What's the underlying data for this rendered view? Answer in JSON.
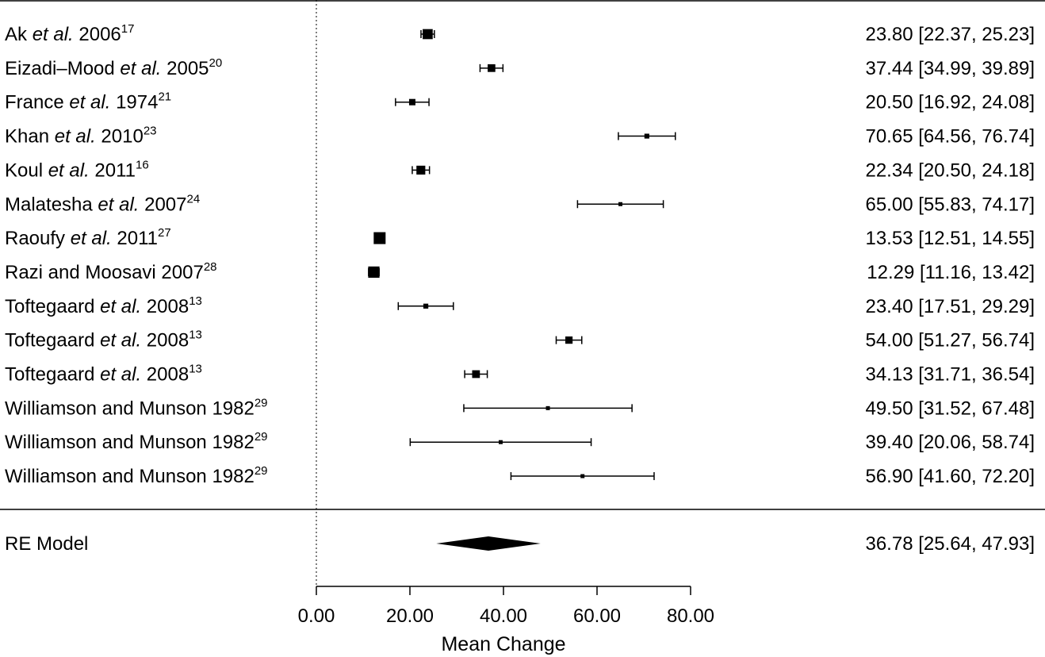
{
  "chart_data": {
    "type": "forest",
    "xlabel": "Mean Change",
    "xlim": [
      0,
      80
    ],
    "xticks": [
      {
        "value": 0,
        "label": "0.00"
      },
      {
        "value": 20,
        "label": "20.00"
      },
      {
        "value": 40,
        "label": "40.00"
      },
      {
        "value": 60,
        "label": "60.00"
      },
      {
        "value": 80,
        "label": "80.00"
      }
    ],
    "reference_line": 0,
    "studies": [
      {
        "parts": [
          {
            "t": "Ak "
          },
          {
            "t": "et al.",
            "i": true
          },
          {
            "t": " 2006"
          }
        ],
        "ref": "17",
        "estimate": 23.8,
        "lower": 22.37,
        "upper": 25.23,
        "ci_text": "23.80 [22.37, 25.23]"
      },
      {
        "parts": [
          {
            "t": "Eizadi–Mood "
          },
          {
            "t": "et al.",
            "i": true
          },
          {
            "t": " 2005"
          }
        ],
        "ref": "20",
        "estimate": 37.44,
        "lower": 34.99,
        "upper": 39.89,
        "ci_text": "37.44 [34.99, 39.89]"
      },
      {
        "parts": [
          {
            "t": "France "
          },
          {
            "t": "et al.",
            "i": true
          },
          {
            "t": " 1974"
          }
        ],
        "ref": "21",
        "estimate": 20.5,
        "lower": 16.92,
        "upper": 24.08,
        "ci_text": "20.50 [16.92, 24.08]"
      },
      {
        "parts": [
          {
            "t": "Khan "
          },
          {
            "t": "et al.",
            "i": true
          },
          {
            "t": " 2010"
          }
        ],
        "ref": "23",
        "estimate": 70.65,
        "lower": 64.56,
        "upper": 76.74,
        "ci_text": "70.65 [64.56, 76.74]"
      },
      {
        "parts": [
          {
            "t": "Koul "
          },
          {
            "t": "et al.",
            "i": true
          },
          {
            "t": " 2011"
          }
        ],
        "ref": "16",
        "estimate": 22.34,
        "lower": 20.5,
        "upper": 24.18,
        "ci_text": "22.34 [20.50, 24.18]"
      },
      {
        "parts": [
          {
            "t": "Malatesha "
          },
          {
            "t": "et al.",
            "i": true
          },
          {
            "t": " 2007"
          }
        ],
        "ref": "24",
        "estimate": 65.0,
        "lower": 55.83,
        "upper": 74.17,
        "ci_text": "65.00 [55.83, 74.17]"
      },
      {
        "parts": [
          {
            "t": "Raoufy "
          },
          {
            "t": "et al.",
            "i": true
          },
          {
            "t": " 2011"
          }
        ],
        "ref": "27",
        "estimate": 13.53,
        "lower": 12.51,
        "upper": 14.55,
        "ci_text": "13.53 [12.51, 14.55]"
      },
      {
        "parts": [
          {
            "t": "Razi and Moosavi 2007"
          }
        ],
        "ref": "28",
        "estimate": 12.29,
        "lower": 11.16,
        "upper": 13.42,
        "ci_text": "12.29 [11.16, 13.42]"
      },
      {
        "parts": [
          {
            "t": "Toftegaard "
          },
          {
            "t": "et al.",
            "i": true
          },
          {
            "t": " 2008"
          }
        ],
        "ref": "13",
        "estimate": 23.4,
        "lower": 17.51,
        "upper": 29.29,
        "ci_text": "23.40 [17.51, 29.29]"
      },
      {
        "parts": [
          {
            "t": "Toftegaard "
          },
          {
            "t": "et al.",
            "i": true
          },
          {
            "t": " 2008"
          }
        ],
        "ref": "13",
        "estimate": 54.0,
        "lower": 51.27,
        "upper": 56.74,
        "ci_text": "54.00 [51.27, 56.74]"
      },
      {
        "parts": [
          {
            "t": "Toftegaard "
          },
          {
            "t": "et al.",
            "i": true
          },
          {
            "t": " 2008"
          }
        ],
        "ref": "13",
        "estimate": 34.13,
        "lower": 31.71,
        "upper": 36.54,
        "ci_text": "34.13 [31.71, 36.54]"
      },
      {
        "parts": [
          {
            "t": "Williamson and Munson 1982"
          }
        ],
        "ref": "29",
        "estimate": 49.5,
        "lower": 31.52,
        "upper": 67.48,
        "ci_text": "49.50 [31.52, 67.48]"
      },
      {
        "parts": [
          {
            "t": "Williamson and Munson 1982"
          }
        ],
        "ref": "29",
        "estimate": 39.4,
        "lower": 20.06,
        "upper": 58.74,
        "ci_text": "39.40 [20.06, 58.74]"
      },
      {
        "parts": [
          {
            "t": "Williamson and Munson 1982"
          }
        ],
        "ref": "29",
        "estimate": 56.9,
        "lower": 41.6,
        "upper": 72.2,
        "ci_text": "56.90 [41.60, 72.20]"
      }
    ],
    "summary": {
      "label": "RE Model",
      "estimate": 36.78,
      "lower": 25.64,
      "upper": 47.93,
      "ci_text": "36.78 [25.64, 47.93]"
    }
  }
}
